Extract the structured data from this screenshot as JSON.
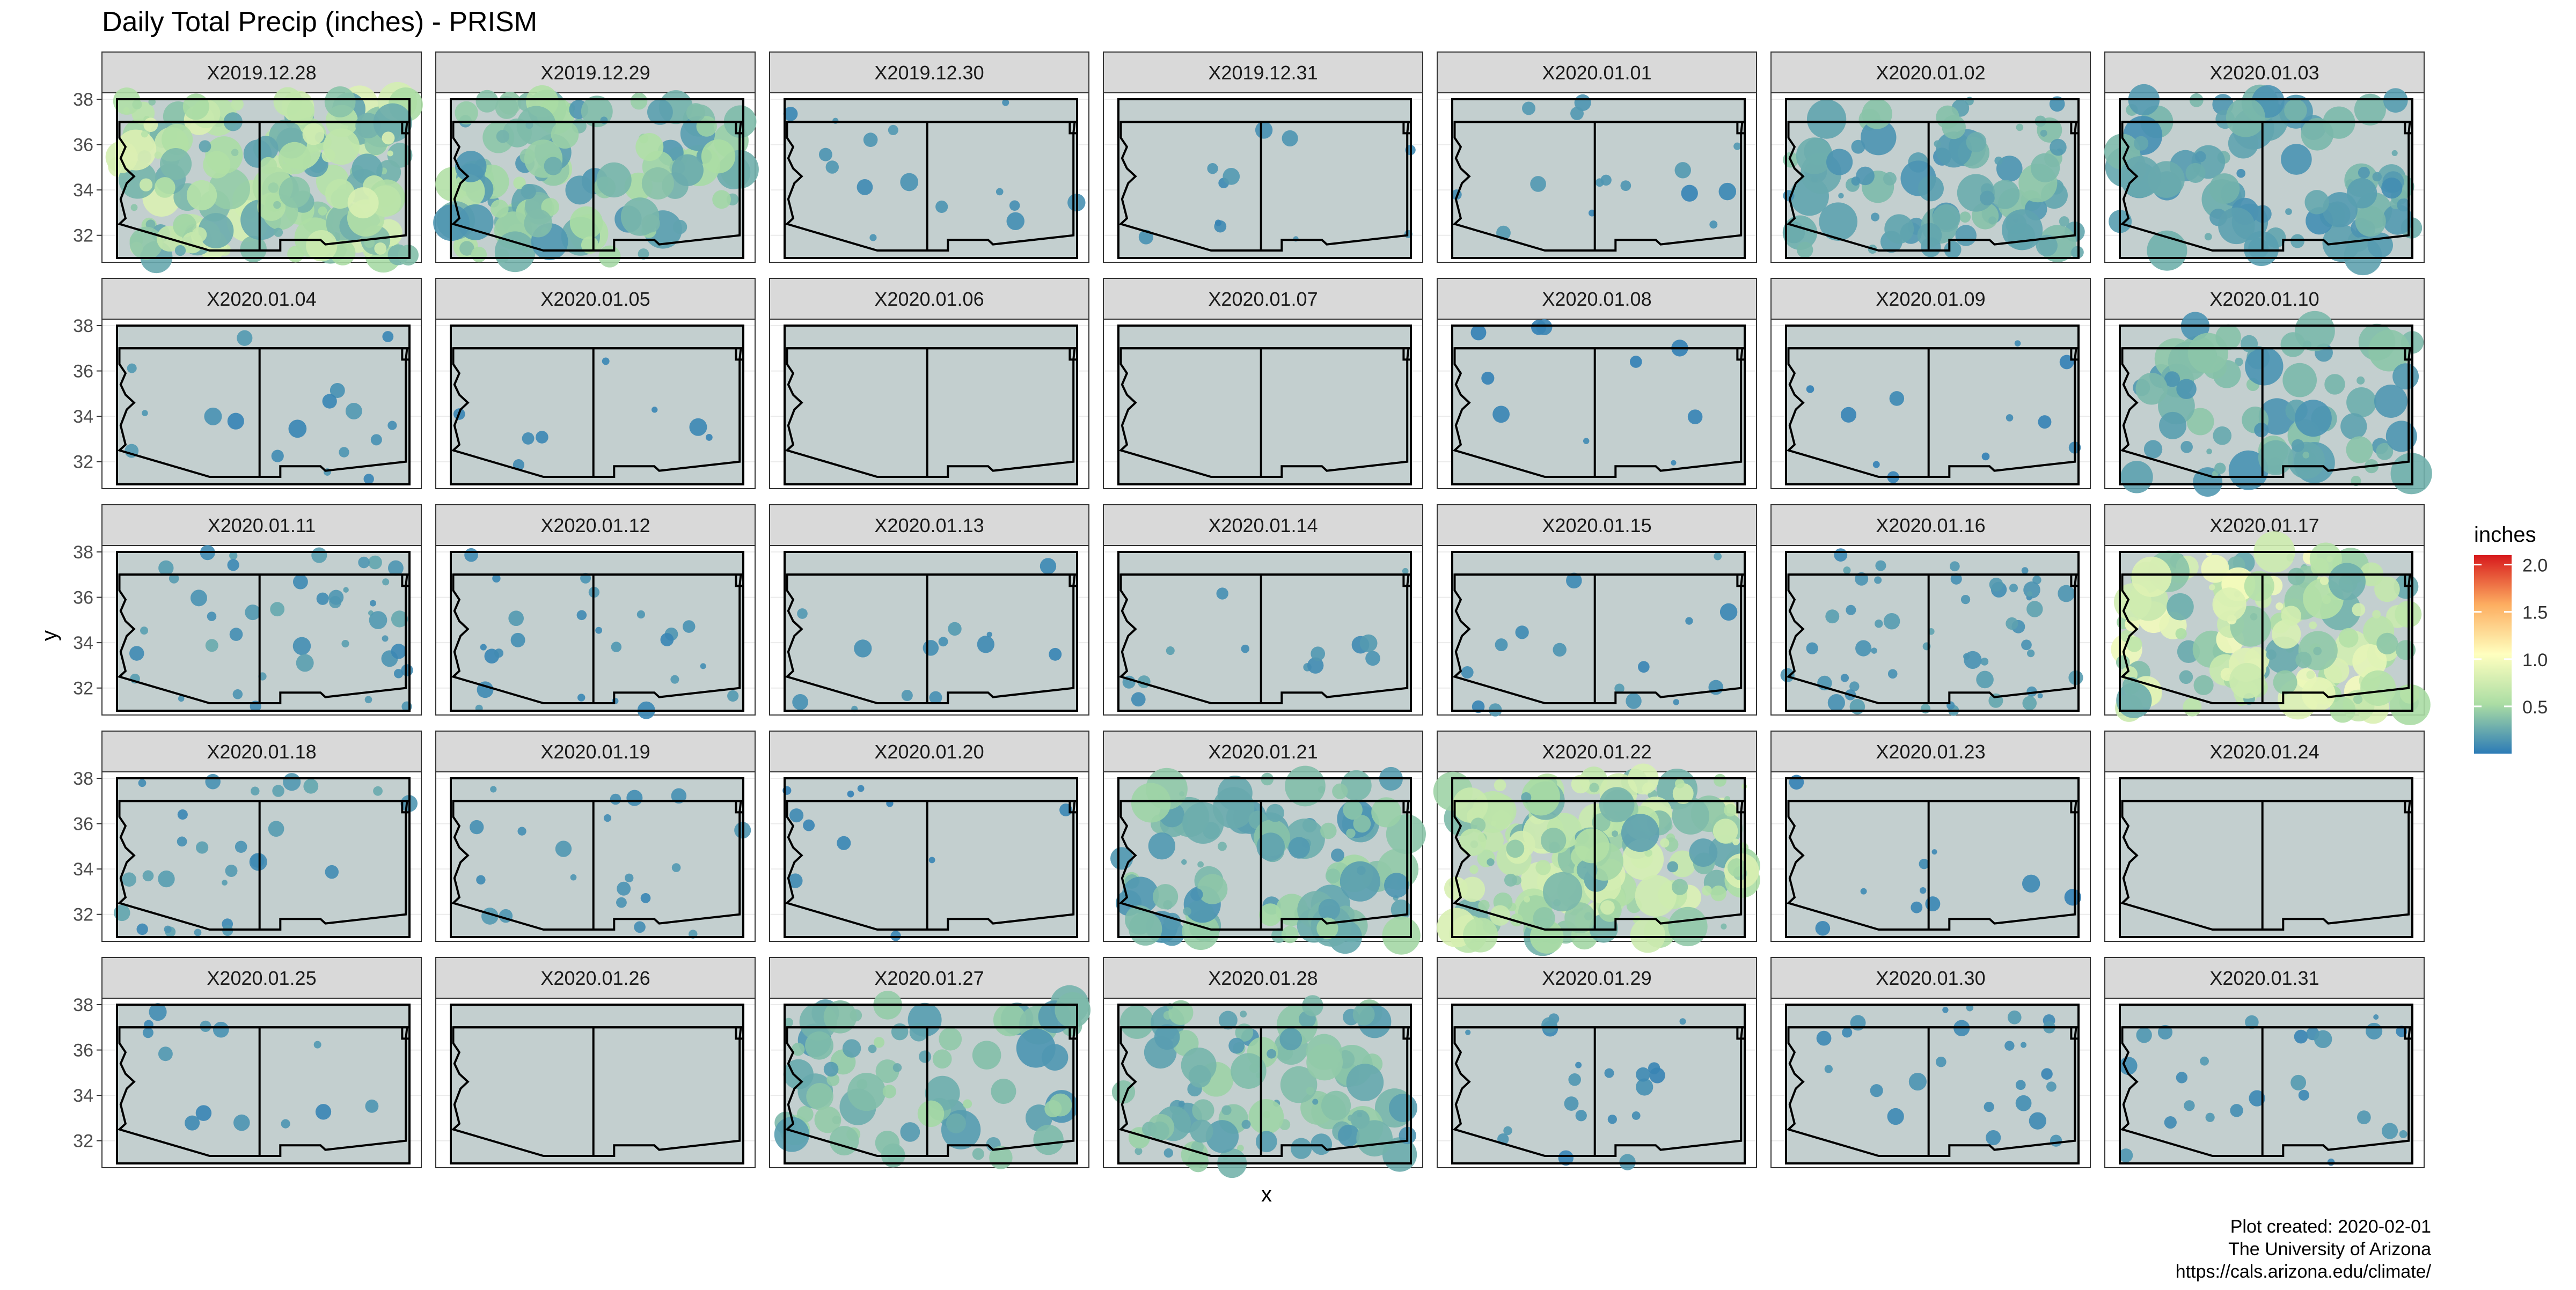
{
  "chart_data": {
    "type": "heatmap",
    "title": "Daily Total Precip (inches) - PRISM",
    "xlabel": "x",
    "ylabel": "y",
    "y_ticks": [
      "32",
      "34",
      "36",
      "38"
    ],
    "ylim": [
      31,
      38
    ],
    "facets": [
      {
        "label": "X2019.12.28",
        "coverage": 0.85,
        "intensity": 0.5
      },
      {
        "label": "X2019.12.29",
        "coverage": 0.55,
        "intensity": 0.35
      },
      {
        "label": "X2019.12.30",
        "coverage": 0.05,
        "intensity": 0.1
      },
      {
        "label": "X2019.12.31",
        "coverage": 0.03,
        "intensity": 0.1
      },
      {
        "label": "X2020.01.01",
        "coverage": 0.05,
        "intensity": 0.1
      },
      {
        "label": "X2020.01.02",
        "coverage": 0.45,
        "intensity": 0.25
      },
      {
        "label": "X2020.01.03",
        "coverage": 0.4,
        "intensity": 0.2
      },
      {
        "label": "X2020.01.04",
        "coverage": 0.06,
        "intensity": 0.1
      },
      {
        "label": "X2020.01.05",
        "coverage": 0.01,
        "intensity": 0.05
      },
      {
        "label": "X2020.01.06",
        "coverage": 0.0,
        "intensity": 0.0
      },
      {
        "label": "X2020.01.07",
        "coverage": 0.0,
        "intensity": 0.0
      },
      {
        "label": "X2020.01.08",
        "coverage": 0.02,
        "intensity": 0.05
      },
      {
        "label": "X2020.01.09",
        "coverage": 0.03,
        "intensity": 0.05
      },
      {
        "label": "X2020.01.10",
        "coverage": 0.35,
        "intensity": 0.25
      },
      {
        "label": "X2020.01.11",
        "coverage": 0.2,
        "intensity": 0.15
      },
      {
        "label": "X2020.01.12",
        "coverage": 0.1,
        "intensity": 0.1
      },
      {
        "label": "X2020.01.13",
        "coverage": 0.04,
        "intensity": 0.1
      },
      {
        "label": "X2020.01.14",
        "coverage": 0.04,
        "intensity": 0.15
      },
      {
        "label": "X2020.01.15",
        "coverage": 0.05,
        "intensity": 0.1
      },
      {
        "label": "X2020.01.16",
        "coverage": 0.25,
        "intensity": 0.15
      },
      {
        "label": "X2020.01.17",
        "coverage": 0.75,
        "intensity": 0.6
      },
      {
        "label": "X2020.01.18",
        "coverage": 0.12,
        "intensity": 0.15
      },
      {
        "label": "X2020.01.19",
        "coverage": 0.08,
        "intensity": 0.1
      },
      {
        "label": "X2020.01.20",
        "coverage": 0.03,
        "intensity": 0.05
      },
      {
        "label": "X2020.01.21",
        "coverage": 0.5,
        "intensity": 0.3
      },
      {
        "label": "X2020.01.22",
        "coverage": 0.92,
        "intensity": 0.5
      },
      {
        "label": "X2020.01.23",
        "coverage": 0.02,
        "intensity": 0.05
      },
      {
        "label": "X2020.01.24",
        "coverage": 0.0,
        "intensity": 0.0
      },
      {
        "label": "X2020.01.25",
        "coverage": 0.04,
        "intensity": 0.1
      },
      {
        "label": "X2020.01.26",
        "coverage": 0.0,
        "intensity": 0.0
      },
      {
        "label": "X2020.01.27",
        "coverage": 0.35,
        "intensity": 0.3
      },
      {
        "label": "X2020.01.28",
        "coverage": 0.45,
        "intensity": 0.3
      },
      {
        "label": "X2020.01.29",
        "coverage": 0.08,
        "intensity": 0.1
      },
      {
        "label": "X2020.01.30",
        "coverage": 0.1,
        "intensity": 0.1
      },
      {
        "label": "X2020.01.31",
        "coverage": 0.1,
        "intensity": 0.1
      }
    ],
    "legend": {
      "title": "inches",
      "placement": "right",
      "range": [
        0,
        2.1
      ],
      "ticks": [
        {
          "value": 0.5,
          "label": "0.5"
        },
        {
          "value": 1.0,
          "label": "1.0"
        },
        {
          "value": 1.5,
          "label": "1.5"
        },
        {
          "value": 2.0,
          "label": "2.0"
        }
      ],
      "colors": [
        "#2c7bb6",
        "#abdda4",
        "#ffffbf",
        "#fdae61",
        "#d7191c"
      ]
    },
    "grid": true,
    "colors": {
      "panel_fill": "#c3cfcf",
      "strip_fill": "#d9d9d9",
      "border": "#000000"
    },
    "caption": [
      "Plot created: 2020-02-01",
      "The University of Arizona",
      "https://cals.arizona.edu/climate/"
    ]
  }
}
